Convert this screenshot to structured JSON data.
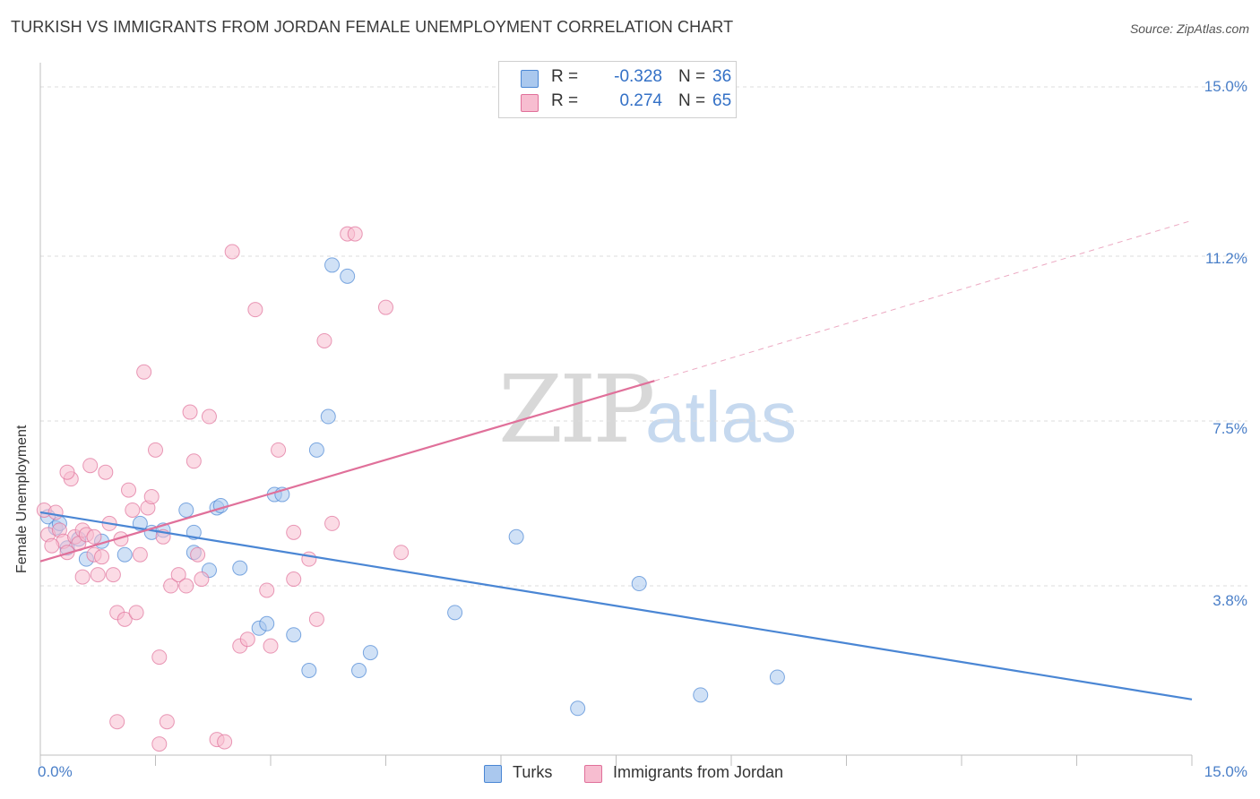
{
  "title": "TURKISH VS IMMIGRANTS FROM JORDAN FEMALE UNEMPLOYMENT CORRELATION CHART",
  "source": "Source: ZipAtlas.com",
  "watermark": {
    "zip": "ZIP",
    "atlas": "atlas"
  },
  "legend": {
    "rows": [
      {
        "label": "R =",
        "r": "-0.328",
        "n_label": "N =",
        "n": "36",
        "color": "#aac8ee"
      },
      {
        "label": "R =",
        "r": " 0.274",
        "n_label": "N =",
        "n": "65",
        "color": "#f7bdd0"
      }
    ]
  },
  "bottom_legend": [
    {
      "label": "Turks",
      "color": "#aac8ee"
    },
    {
      "label": "Immigrants from Jordan",
      "color": "#f7bdd0"
    }
  ],
  "chart_data": {
    "type": "scatter",
    "title": "TURKISH VS IMMIGRANTS FROM JORDAN FEMALE UNEMPLOYMENT CORRELATION CHART",
    "xlabel": "",
    "ylabel": "Female Unemployment",
    "xlim": [
      0,
      15
    ],
    "ylim": [
      0,
      15.5
    ],
    "x_tick_labels": [
      "0.0%",
      "15.0%"
    ],
    "y_ticks": [
      3.8,
      7.5,
      11.2,
      15.0
    ],
    "y_tick_labels": [
      "3.8%",
      "7.5%",
      "11.2%",
      "15.0%"
    ],
    "grid": true,
    "legend_position": "top-center",
    "series": [
      {
        "name": "Turks",
        "color": "#4a86d4",
        "fill": "#aac8ee",
        "trend": {
          "x": [
            0,
            15
          ],
          "y": [
            5.45,
            1.25
          ],
          "dashed_from": null
        },
        "points": [
          [
            0.1,
            5.35
          ],
          [
            0.2,
            5.1
          ],
          [
            0.35,
            4.65
          ],
          [
            0.5,
            4.85
          ],
          [
            0.6,
            4.4
          ],
          [
            0.8,
            4.8
          ],
          [
            1.1,
            4.5
          ],
          [
            1.3,
            5.2
          ],
          [
            1.45,
            5.0
          ],
          [
            1.6,
            5.05
          ],
          [
            1.9,
            5.5
          ],
          [
            2.0,
            4.55
          ],
          [
            2.0,
            5.0
          ],
          [
            2.2,
            4.15
          ],
          [
            2.3,
            5.55
          ],
          [
            2.6,
            4.2
          ],
          [
            2.85,
            2.85
          ],
          [
            2.95,
            2.95
          ],
          [
            3.05,
            5.85
          ],
          [
            3.15,
            5.85
          ],
          [
            3.3,
            2.7
          ],
          [
            3.5,
            1.9
          ],
          [
            3.6,
            6.85
          ],
          [
            3.75,
            7.6
          ],
          [
            3.8,
            11.0
          ],
          [
            4.0,
            10.75
          ],
          [
            4.15,
            1.9
          ],
          [
            4.3,
            2.3
          ],
          [
            5.4,
            3.2
          ],
          [
            6.2,
            4.9
          ],
          [
            7.0,
            1.05
          ],
          [
            7.8,
            3.85
          ],
          [
            8.6,
            1.35
          ],
          [
            9.6,
            1.75
          ],
          [
            0.25,
            5.2
          ],
          [
            2.35,
            5.6
          ]
        ]
      },
      {
        "name": "Immigrants from Jordan",
        "color": "#e0709a",
        "fill": "#f7bdd0",
        "trend": {
          "x": [
            0,
            8.0,
            15
          ],
          "y": [
            4.35,
            8.4,
            12.0
          ],
          "dashed_from": 8.0
        },
        "points": [
          [
            0.05,
            5.5
          ],
          [
            0.1,
            4.95
          ],
          [
            0.2,
            5.45
          ],
          [
            0.25,
            5.05
          ],
          [
            0.3,
            4.8
          ],
          [
            0.35,
            4.55
          ],
          [
            0.4,
            6.2
          ],
          [
            0.45,
            4.9
          ],
          [
            0.5,
            4.75
          ],
          [
            0.55,
            5.05
          ],
          [
            0.6,
            4.95
          ],
          [
            0.65,
            6.5
          ],
          [
            0.7,
            4.5
          ],
          [
            0.75,
            4.05
          ],
          [
            0.8,
            4.45
          ],
          [
            0.85,
            6.35
          ],
          [
            0.9,
            5.2
          ],
          [
            0.95,
            4.05
          ],
          [
            1.0,
            3.2
          ],
          [
            1.05,
            4.85
          ],
          [
            1.1,
            3.05
          ],
          [
            1.15,
            5.95
          ],
          [
            1.2,
            5.5
          ],
          [
            1.25,
            3.2
          ],
          [
            1.3,
            4.5
          ],
          [
            1.35,
            8.6
          ],
          [
            1.4,
            5.55
          ],
          [
            1.45,
            5.8
          ],
          [
            1.5,
            6.85
          ],
          [
            1.55,
            2.2
          ],
          [
            1.6,
            4.9
          ],
          [
            1.7,
            3.8
          ],
          [
            1.8,
            4.05
          ],
          [
            1.9,
            3.8
          ],
          [
            1.95,
            7.7
          ],
          [
            2.0,
            6.6
          ],
          [
            2.05,
            4.5
          ],
          [
            2.1,
            3.95
          ],
          [
            2.2,
            7.6
          ],
          [
            2.3,
            0.35
          ],
          [
            2.4,
            0.3
          ],
          [
            2.5,
            11.3
          ],
          [
            2.6,
            2.45
          ],
          [
            2.7,
            2.6
          ],
          [
            2.8,
            10.0
          ],
          [
            2.95,
            3.7
          ],
          [
            3.0,
            2.45
          ],
          [
            3.1,
            6.85
          ],
          [
            3.3,
            5.0
          ],
          [
            3.5,
            4.4
          ],
          [
            3.6,
            3.05
          ],
          [
            3.7,
            9.3
          ],
          [
            3.8,
            5.2
          ],
          [
            4.0,
            11.7
          ],
          [
            4.1,
            11.7
          ],
          [
            4.5,
            10.05
          ],
          [
            4.7,
            4.55
          ],
          [
            0.35,
            6.35
          ],
          [
            1.0,
            0.75
          ],
          [
            1.55,
            0.25
          ],
          [
            3.3,
            3.95
          ],
          [
            0.15,
            4.7
          ],
          [
            0.55,
            4.0
          ],
          [
            1.65,
            0.75
          ],
          [
            0.7,
            4.9
          ]
        ]
      }
    ]
  }
}
